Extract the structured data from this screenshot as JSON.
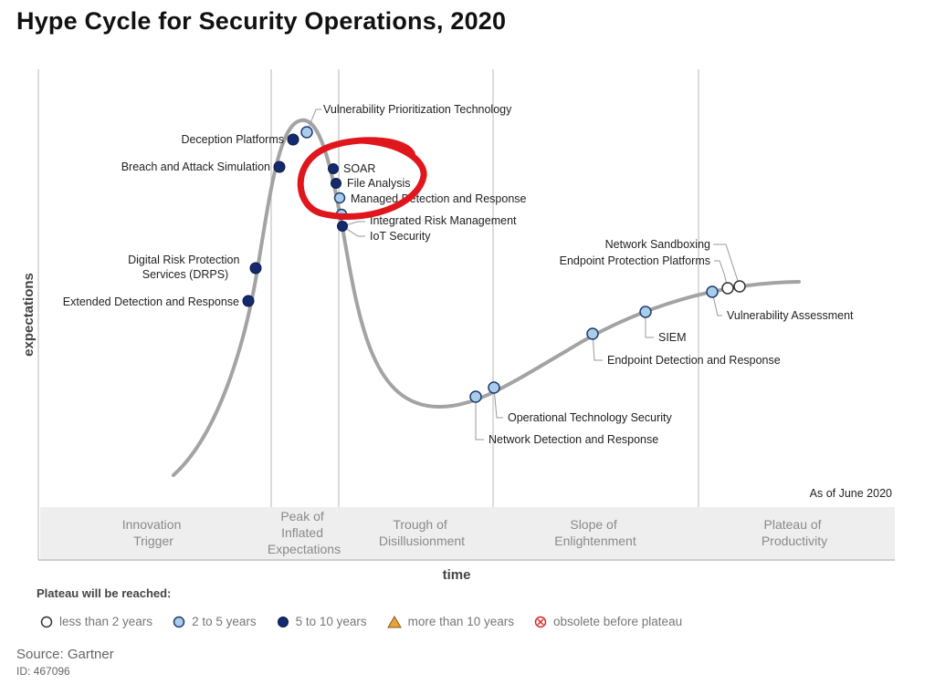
{
  "title": "Hype Cycle for Security Operations, 2020",
  "axes": {
    "y_label": "expectations",
    "x_label": "time"
  },
  "as_of": "As of June 2020",
  "phases": [
    {
      "id": "innovation",
      "lines": [
        "Innovation",
        "Trigger"
      ]
    },
    {
      "id": "peak",
      "lines": [
        "Peak of",
        "Inflated",
        "Expectations"
      ]
    },
    {
      "id": "trough",
      "lines": [
        "Trough of",
        "Disillusionment"
      ]
    },
    {
      "id": "slope",
      "lines": [
        "Slope of",
        "Enlightenment"
      ]
    },
    {
      "id": "plateau",
      "lines": [
        "Plateau of",
        "Productivity"
      ]
    }
  ],
  "technologies": [
    {
      "name": "Vulnerability Prioritization Technology",
      "category": "2to5"
    },
    {
      "name": "Deception Platforms",
      "category": "5to10"
    },
    {
      "name": "Breach and Attack Simulation",
      "category": "5to10"
    },
    {
      "name": "SOAR",
      "category": "5to10"
    },
    {
      "name": "File Analysis",
      "category": "5to10"
    },
    {
      "name": "Managed Detection and Response",
      "category": "2to5"
    },
    {
      "name": "Integrated Risk Management",
      "category": "2to5"
    },
    {
      "name": "IoT Security",
      "category": "5to10"
    },
    {
      "name": "Digital Risk Protection Services (DRPS)",
      "category": "5to10"
    },
    {
      "name": "Extended Detection and Response",
      "category": "5to10"
    },
    {
      "name": "Network Sandboxing",
      "category": "lt2"
    },
    {
      "name": "Endpoint Protection Platforms",
      "category": "lt2"
    },
    {
      "name": "Vulnerability Assessment",
      "category": "2to5"
    },
    {
      "name": "SIEM",
      "category": "2to5"
    },
    {
      "name": "Endpoint Detection and Response",
      "category": "2to5"
    },
    {
      "name": "Operational Technology Security",
      "category": "2to5"
    },
    {
      "name": "Network Detection and Response",
      "category": "2to5"
    }
  ],
  "legend": {
    "title": "Plateau will be reached:",
    "items": [
      {
        "key": "lt2",
        "label": "less than 2 years",
        "icon": "white-circle-icon"
      },
      {
        "key": "2to5",
        "label": "2 to 5 years",
        "icon": "light-blue-circle-icon"
      },
      {
        "key": "5to10",
        "label": "5 to 10 years",
        "icon": "dark-blue-circle-icon"
      },
      {
        "key": "gt10",
        "label": "more than 10 years",
        "icon": "orange-triangle-icon"
      },
      {
        "key": "obsolete",
        "label": "obsolete before plateau",
        "icon": "red-crossed-circle-icon"
      }
    ]
  },
  "colors": {
    "lt2": "#ffffff",
    "2to5": "#a9cdea",
    "5to10": "#132a6e",
    "gt10": "#e8a23a",
    "obsolete": "#d22b2b",
    "curve": "#a3a3a3",
    "annotation": "#e0161d",
    "phase_band": "#eeeeee"
  },
  "source": "Source: Gartner",
  "doc_id": "ID: 467096"
}
